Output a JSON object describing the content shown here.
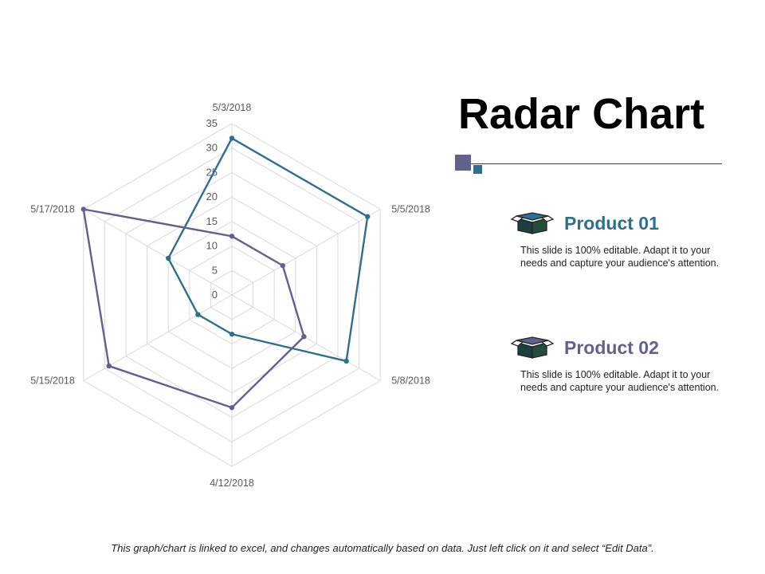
{
  "title": "Radar Chart",
  "chart_data": {
    "type": "radar",
    "categories": [
      "5/3/2018",
      "5/5/2018",
      "5/8/2018",
      "4/12/2018",
      "5/15/2018",
      "5/17/2018"
    ],
    "rmax": 35,
    "ticks": [
      "0",
      "5",
      "10",
      "15",
      "20",
      "25",
      "30",
      "35"
    ],
    "series": [
      {
        "name": "Product 01",
        "color": "#2e6f8e",
        "values": [
          32,
          32,
          27,
          8,
          8,
          15
        ]
      },
      {
        "name": "Product 02",
        "color": "#62618e",
        "values": [
          12,
          12,
          17,
          23,
          29,
          35
        ]
      }
    ],
    "grid": true
  },
  "legend": [
    {
      "name": "Product 01",
      "color": "#2e6f8e",
      "desc": "This slide is 100% editable. Adapt it to your needs and capture your audience's attention."
    },
    {
      "name": "Product 02",
      "color": "#62618e",
      "desc": "This slide is 100% editable. Adapt it to your needs and capture your audience's attention."
    }
  ],
  "decor": {
    "accent_a": "#62618e",
    "accent_b": "#2e6f8e",
    "icon_dark": "#1f3f3f",
    "icon_green": "#234f3a"
  },
  "footnote": "This graph/chart is linked to excel, and changes automatically based on data. Just left click on it and select “Edit Data”."
}
